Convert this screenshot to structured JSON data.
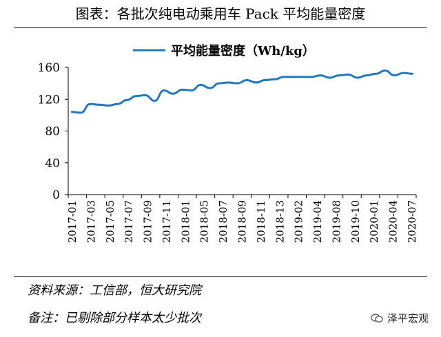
{
  "page": {
    "title": "图表：各批次纯电动乘用车 Pack 平均能量密度",
    "source": "资料来源：工信部，恒大研究院",
    "remark": "备注：已剔除部分样本太少批次",
    "watermark": "泽平宏观",
    "accent_color": "#1f78c1"
  },
  "chart_data": {
    "type": "line",
    "title": "",
    "xlabel": "",
    "ylabel": "",
    "ylim": [
      0,
      160
    ],
    "yticks": [
      0,
      40,
      80,
      120,
      160
    ],
    "legend": "top-center",
    "series": [
      {
        "name": "平均能量密度（Wh/kg）",
        "color": "#1f78c1",
        "values": [
          104,
          103,
          114,
          113,
          112,
          114,
          119,
          124,
          125,
          118,
          131,
          127,
          132,
          131,
          138,
          134,
          140,
          141,
          140,
          144,
          141,
          144,
          145,
          148,
          148,
          148,
          148,
          150,
          147,
          150,
          151,
          147,
          150,
          152,
          156,
          150,
          153,
          152
        ]
      }
    ],
    "tick_labels": [
      "2017-01",
      "2017-03",
      "2017-05",
      "2017-07",
      "2017-09",
      "2017-11",
      "2018-01",
      "2018-05",
      "2018-07",
      "2018-09",
      "2018-11",
      "2018-13",
      "2019-02",
      "2019-04",
      "2019-08",
      "2019-10",
      "2020-01",
      "2020-04",
      "2020-07"
    ]
  }
}
